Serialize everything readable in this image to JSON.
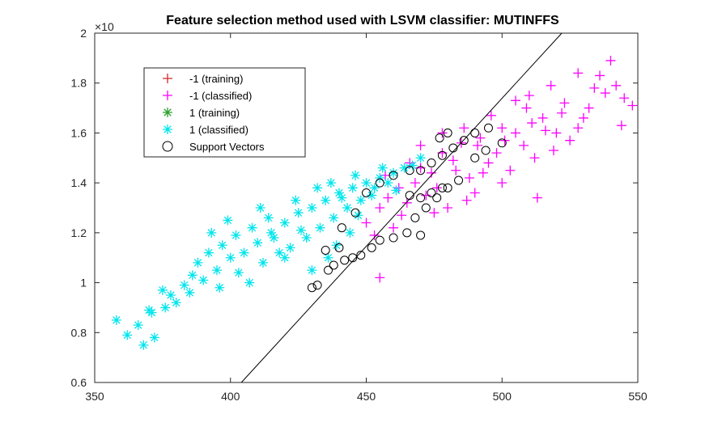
{
  "chart_data": {
    "type": "scatter",
    "title": "Feature selection method used with LSVM classifier: MUTINFFS",
    "xlabel": "",
    "ylabel": "",
    "xlim": [
      350,
      550
    ],
    "ylim": [
      0.6,
      2
    ],
    "y_exponent_label": "×10",
    "x_ticks": [
      350,
      400,
      450,
      500,
      550
    ],
    "y_ticks": [
      0.6,
      0.8,
      1,
      1.2,
      1.4,
      1.6,
      1.8,
      2
    ],
    "x_tick_labels": [
      "350",
      "400",
      "450",
      "500",
      "550"
    ],
    "y_tick_labels": [
      "0.6",
      "0.8",
      "1",
      "1.2",
      "1.4",
      "1.6",
      "1.8",
      "2"
    ],
    "grid": false,
    "legend_position": "top-left",
    "series": [
      {
        "name": "-1 (training)",
        "marker": "plus",
        "color": "#d62728",
        "points": []
      },
      {
        "name": "-1 (classified)",
        "marker": "plus",
        "color": "#ff00ff",
        "points": [
          [
            540,
            1.89
          ],
          [
            536,
            1.83
          ],
          [
            528,
            1.84
          ],
          [
            548,
            1.71
          ],
          [
            544,
            1.63
          ],
          [
            510,
            1.75
          ],
          [
            505,
            1.73
          ],
          [
            518,
            1.79
          ],
          [
            522,
            1.68
          ],
          [
            515,
            1.66
          ],
          [
            500,
            1.62
          ],
          [
            492,
            1.58
          ],
          [
            485,
            1.56
          ],
          [
            478,
            1.52
          ],
          [
            470,
            1.46
          ],
          [
            462,
            1.38
          ],
          [
            455,
            1.3
          ],
          [
            450,
            1.24
          ],
          [
            465,
            1.32
          ],
          [
            472,
            1.35
          ],
          [
            488,
            1.42
          ],
          [
            495,
            1.48
          ],
          [
            508,
            1.55
          ],
          [
            520,
            1.6
          ],
          [
            528,
            1.62
          ],
          [
            532,
            1.7
          ],
          [
            512,
            1.5
          ],
          [
            490,
            1.36
          ],
          [
            475,
            1.28
          ],
          [
            460,
            1.22
          ],
          [
            480,
            1.3
          ],
          [
            500,
            1.4
          ],
          [
            455,
            1.02
          ],
          [
            513,
            1.34
          ],
          [
            525,
            1.57
          ],
          [
            483,
            1.45
          ],
          [
            468,
            1.4
          ],
          [
            458,
            1.34
          ],
          [
            498,
            1.52
          ],
          [
            505,
            1.6
          ],
          [
            530,
            1.66
          ],
          [
            545,
            1.74
          ],
          [
            538,
            1.76
          ],
          [
            516,
            1.61
          ],
          [
            493,
            1.44
          ],
          [
            476,
            1.38
          ],
          [
            463,
            1.27
          ],
          [
            453,
            1.19
          ],
          [
            487,
            1.33
          ],
          [
            503,
            1.45
          ],
          [
            519,
            1.53
          ],
          [
            470,
            1.55
          ],
          [
            478,
            1.6
          ],
          [
            486,
            1.62
          ],
          [
            496,
            1.67
          ],
          [
            509,
            1.7
          ],
          [
            457,
            1.43
          ],
          [
            466,
            1.48
          ],
          [
            474,
            1.44
          ],
          [
            482,
            1.49
          ],
          [
            491,
            1.55
          ],
          [
            501,
            1.57
          ],
          [
            511,
            1.64
          ],
          [
            523,
            1.72
          ],
          [
            534,
            1.78
          ],
          [
            542,
            1.79
          ]
        ]
      },
      {
        "name": "1 (training)",
        "marker": "asterisk",
        "color": "#2ca02c",
        "points": []
      },
      {
        "name": "1 (classified)",
        "marker": "asterisk",
        "color": "#00e5ee",
        "points": [
          [
            358,
            0.85
          ],
          [
            362,
            0.79
          ],
          [
            368,
            0.75
          ],
          [
            370,
            0.89
          ],
          [
            372,
            0.78
          ],
          [
            366,
            0.83
          ],
          [
            375,
            0.97
          ],
          [
            380,
            0.92
          ],
          [
            385,
            0.96
          ],
          [
            390,
            1.01
          ],
          [
            395,
            1.05
          ],
          [
            400,
            1.1
          ],
          [
            405,
            1.12
          ],
          [
            410,
            1.16
          ],
          [
            415,
            1.2
          ],
          [
            420,
            1.24
          ],
          [
            425,
            1.28
          ],
          [
            430,
            1.3
          ],
          [
            435,
            1.33
          ],
          [
            440,
            1.36
          ],
          [
            445,
            1.38
          ],
          [
            450,
            1.4
          ],
          [
            455,
            1.42
          ],
          [
            460,
            1.44
          ],
          [
            464,
            1.46
          ],
          [
            397,
            1.15
          ],
          [
            392,
            1.12
          ],
          [
            388,
            1.08
          ],
          [
            402,
            1.19
          ],
          [
            408,
            1.22
          ],
          [
            412,
            1.08
          ],
          [
            418,
            1.12
          ],
          [
            422,
            1.14
          ],
          [
            428,
            1.18
          ],
          [
            433,
            1.22
          ],
          [
            438,
            1.26
          ],
          [
            443,
            1.3
          ],
          [
            448,
            1.33
          ],
          [
            452,
            1.35
          ],
          [
            383,
            0.99
          ],
          [
            378,
            0.95
          ],
          [
            403,
            1.04
          ],
          [
            407,
            1.0
          ],
          [
            396,
            0.98
          ],
          [
            386,
            1.03
          ],
          [
            414,
            1.26
          ],
          [
            424,
            1.33
          ],
          [
            432,
            1.38
          ],
          [
            437,
            1.4
          ],
          [
            446,
            1.43
          ],
          [
            456,
            1.46
          ],
          [
            426,
            1.21
          ],
          [
            436,
            1.1
          ],
          [
            430,
            1.05
          ],
          [
            420,
            1.1
          ],
          [
            411,
            1.3
          ],
          [
            399,
            1.25
          ],
          [
            393,
            1.2
          ],
          [
            416,
            1.18
          ],
          [
            441,
            1.34
          ],
          [
            453,
            1.38
          ],
          [
            458,
            1.4
          ],
          [
            461,
            1.37
          ],
          [
            467,
            1.47
          ],
          [
            470,
            1.5
          ],
          [
            447,
            1.27
          ],
          [
            444,
            1.2
          ],
          [
            439,
            1.15
          ],
          [
            371,
            0.88
          ],
          [
            376,
            0.9
          ]
        ]
      },
      {
        "name": "Support Vectors",
        "marker": "circle",
        "color": "#000000",
        "points": [
          [
            430,
            0.98
          ],
          [
            432,
            0.99
          ],
          [
            436,
            1.05
          ],
          [
            438,
            1.07
          ],
          [
            442,
            1.09
          ],
          [
            445,
            1.1
          ],
          [
            448,
            1.11
          ],
          [
            452,
            1.14
          ],
          [
            455,
            1.17
          ],
          [
            460,
            1.18
          ],
          [
            465,
            1.2
          ],
          [
            470,
            1.19
          ],
          [
            468,
            1.26
          ],
          [
            472,
            1.3
          ],
          [
            476,
            1.34
          ],
          [
            480,
            1.38
          ],
          [
            484,
            1.41
          ],
          [
            470,
            1.34
          ],
          [
            474,
            1.36
          ],
          [
            478,
            1.38
          ],
          [
            466,
            1.35
          ],
          [
            470,
            1.45
          ],
          [
            474,
            1.48
          ],
          [
            478,
            1.51
          ],
          [
            482,
            1.54
          ],
          [
            486,
            1.57
          ],
          [
            490,
            1.6
          ],
          [
            495,
            1.62
          ],
          [
            490,
            1.5
          ],
          [
            494,
            1.53
          ],
          [
            500,
            1.56
          ],
          [
            480,
            1.6
          ],
          [
            477,
            1.58
          ],
          [
            466,
            1.45
          ],
          [
            460,
            1.43
          ],
          [
            455,
            1.4
          ],
          [
            450,
            1.36
          ],
          [
            446,
            1.28
          ],
          [
            441,
            1.22
          ],
          [
            435,
            1.13
          ],
          [
            440,
            1.14
          ]
        ]
      }
    ],
    "decision_boundary": {
      "name": "",
      "color": "#000000",
      "points": [
        [
          404,
          0.6
        ],
        [
          522,
          2.0
        ]
      ]
    }
  }
}
